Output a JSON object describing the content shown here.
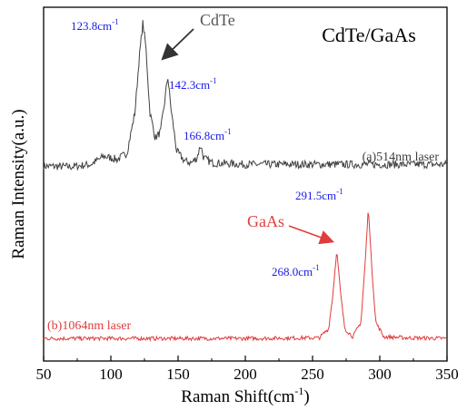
{
  "chart_data": {
    "type": "line",
    "title": "CdTe/GaAs",
    "xlabel": "Raman Shift(cm",
    "xlabel_sup": "-1",
    "xlabel_close": ")",
    "ylabel": "Raman Intensity(a.u.)",
    "xlim": [
      50,
      350
    ],
    "ylim": [
      0,
      1
    ],
    "xticks": [
      50,
      100,
      150,
      200,
      250,
      300,
      350
    ],
    "ytick_labels_shown": false,
    "grid": false,
    "legend": "none",
    "series": [
      {
        "name": "(a)514nm laser",
        "color": "#404040",
        "noise": 0.012,
        "points": [
          [
            50,
            0.555
          ],
          [
            70,
            0.553
          ],
          [
            85,
            0.56
          ],
          [
            95,
            0.585
          ],
          [
            105,
            0.575
          ],
          [
            112,
            0.595
          ],
          [
            118,
            0.72
          ],
          [
            121,
            0.88
          ],
          [
            123.8,
            0.99
          ],
          [
            126,
            0.92
          ],
          [
            129,
            0.72
          ],
          [
            133,
            0.64
          ],
          [
            137,
            0.66
          ],
          [
            140,
            0.75
          ],
          [
            142.3,
            0.83
          ],
          [
            145,
            0.72
          ],
          [
            149,
            0.6
          ],
          [
            155,
            0.57
          ],
          [
            160,
            0.565
          ],
          [
            164,
            0.58
          ],
          [
            166.8,
            0.62
          ],
          [
            169,
            0.58
          ],
          [
            175,
            0.565
          ],
          [
            200,
            0.56
          ],
          [
            250,
            0.56
          ],
          [
            300,
            0.56
          ],
          [
            350,
            0.56
          ]
        ]
      },
      {
        "name": "(b)1064nm laser",
        "color": "#e03c3c",
        "noise": 0.006,
        "points": [
          [
            50,
            0.03
          ],
          [
            120,
            0.03
          ],
          [
            200,
            0.03
          ],
          [
            255,
            0.032
          ],
          [
            262,
            0.06
          ],
          [
            265,
            0.16
          ],
          [
            268,
            0.3
          ],
          [
            271,
            0.16
          ],
          [
            274,
            0.06
          ],
          [
            280,
            0.035
          ],
          [
            286,
            0.08
          ],
          [
            289,
            0.25
          ],
          [
            291.5,
            0.43
          ],
          [
            294,
            0.25
          ],
          [
            297,
            0.08
          ],
          [
            303,
            0.035
          ],
          [
            320,
            0.032
          ],
          [
            350,
            0.03
          ]
        ]
      }
    ],
    "annotations": [
      {
        "id": "peak-123",
        "x": 123.8,
        "y": 0.99,
        "text": "123.8cm",
        "sup": "-1",
        "color": "#1a1ae6"
      },
      {
        "id": "peak-142",
        "x": 142.3,
        "y": 0.83,
        "text": "142.3cm",
        "sup": "-1",
        "color": "#1a1ae6"
      },
      {
        "id": "peak-166",
        "x": 166.8,
        "y": 0.62,
        "text": "166.8cm",
        "sup": "-1",
        "color": "#1a1ae6"
      },
      {
        "id": "peak-291",
        "x": 291.5,
        "y": 0.43,
        "text": "291.5cm",
        "sup": "-1",
        "color": "#1a1ae6"
      },
      {
        "id": "peak-268",
        "x": 268.0,
        "y": 0.3,
        "text": "268.0cm",
        "sup": "-1",
        "color": "#1a1ae6"
      },
      {
        "id": "label-cdte",
        "text": "CdTe",
        "color": "#555555"
      },
      {
        "id": "label-gaas",
        "text": "GaAs",
        "color": "#e03c3c"
      }
    ]
  }
}
